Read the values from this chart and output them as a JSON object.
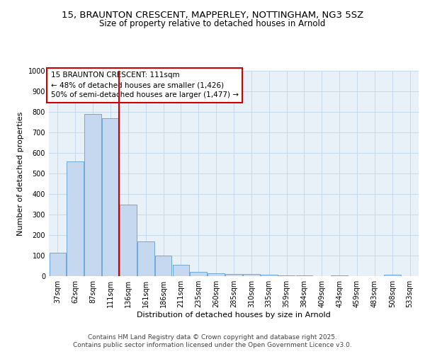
{
  "title_line1": "15, BRAUNTON CRESCENT, MAPPERLEY, NOTTINGHAM, NG3 5SZ",
  "title_line2": "Size of property relative to detached houses in Arnold",
  "xlabel": "Distribution of detached houses by size in Arnold",
  "ylabel": "Number of detached properties",
  "bar_labels": [
    "37sqm",
    "62sqm",
    "87sqm",
    "111sqm",
    "136sqm",
    "161sqm",
    "186sqm",
    "211sqm",
    "235sqm",
    "260sqm",
    "285sqm",
    "310sqm",
    "335sqm",
    "359sqm",
    "384sqm",
    "409sqm",
    "434sqm",
    "459sqm",
    "483sqm",
    "508sqm",
    "533sqm"
  ],
  "bar_values": [
    115,
    560,
    790,
    770,
    350,
    170,
    100,
    55,
    20,
    15,
    10,
    10,
    8,
    3,
    3,
    0,
    3,
    0,
    0,
    8,
    0
  ],
  "bar_color": "#c5d8f0",
  "bar_edge_color": "#6ea8d8",
  "red_line_x": 3.5,
  "annotation_title": "15 BRAUNTON CRESCENT: 111sqm",
  "annotation_line2": "← 48% of detached houses are smaller (1,426)",
  "annotation_line3": "50% of semi-detached houses are larger (1,477) →",
  "annotation_box_color": "#ffffff",
  "annotation_border_color": "#cc0000",
  "ylim": [
    0,
    1000
  ],
  "yticks": [
    0,
    100,
    200,
    300,
    400,
    500,
    600,
    700,
    800,
    900,
    1000
  ],
  "grid_color": "#c8d8ec",
  "background_color": "#e8f0f8",
  "footer_text": "Contains HM Land Registry data © Crown copyright and database right 2025.\nContains public sector information licensed under the Open Government Licence v3.0.",
  "title_fontsize": 9.5,
  "subtitle_fontsize": 8.5,
  "axis_label_fontsize": 8,
  "tick_fontsize": 7,
  "annotation_fontsize": 7.5,
  "footer_fontsize": 6.5
}
